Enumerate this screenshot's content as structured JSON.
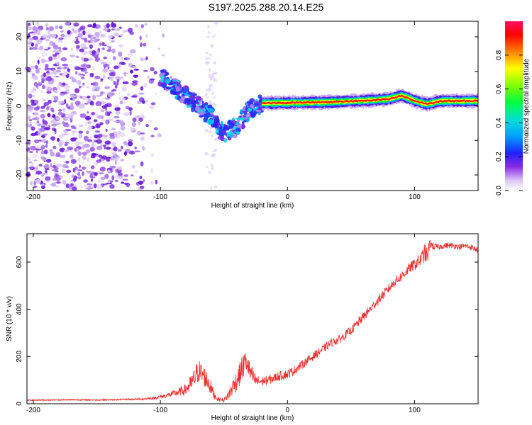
{
  "page": {
    "title": "S197.2025.288.20.14.E25"
  },
  "colors": {
    "snr_line": "#ee2c2c",
    "axis": "#000000",
    "background": "#ffffff"
  },
  "chart_data": [
    {
      "type": "heatmap",
      "title": "S197.2025.288.20.14.E25",
      "xlabel": "Height of straight line (km)",
      "ylabel": "Frequency (Hz)",
      "xlim": [
        -205,
        150
      ],
      "ylim": [
        -24.5,
        24.5
      ],
      "x_ticks": [
        -200,
        -100,
        0,
        100
      ],
      "y_ticks": [
        -20,
        -10,
        0,
        10,
        20
      ],
      "colorbar": {
        "label": "Normalized spectral amplitude",
        "range": [
          0.0,
          1.0
        ],
        "ticks": [
          0.0,
          0.2,
          0.4,
          0.6,
          0.8
        ],
        "colormap": [
          "#ffffff",
          "#c9a8f5",
          "#8020e8",
          "#1a1aff",
          "#00d8ff",
          "#00ff20",
          "#ffff00",
          "#ff2000",
          "#ff1060"
        ]
      },
      "features": [
        {
          "name": "scattered noise",
          "x_range": [
            -205,
            -95
          ],
          "y_range": [
            -24,
            24
          ],
          "amplitude": 0.1
        },
        {
          "name": "descending trace",
          "x": [
            -100,
            -90,
            -80,
            -70,
            -60,
            -50,
            -40,
            -30,
            -20
          ],
          "y": [
            8.5,
            6,
            3,
            0,
            -3,
            -8,
            -6,
            -1,
            0.5
          ],
          "amplitude": 0.35
        },
        {
          "name": "carrier line",
          "x": [
            -20,
            0,
            20,
            40,
            60,
            80,
            90,
            100,
            110,
            120,
            150
          ],
          "y": [
            0.8,
            0.9,
            1.0,
            1.2,
            1.5,
            2.0,
            3.0,
            1.5,
            0.5,
            1.4,
            1.5
          ],
          "amplitude": 0.9
        }
      ]
    },
    {
      "type": "line",
      "xlabel": "Height of straight line (km)",
      "ylabel": "SNR (10 * v/v)",
      "xlim": [
        -205,
        150
      ],
      "ylim": [
        0,
        720
      ],
      "x_ticks": [
        -200,
        -100,
        0,
        100
      ],
      "y_ticks": [
        0,
        200,
        400,
        600
      ],
      "series": [
        {
          "name": "SNR",
          "x": [
            -205,
            -190,
            -170,
            -150,
            -130,
            -115,
            -105,
            -95,
            -88,
            -80,
            -75,
            -72,
            -70,
            -66,
            -62,
            -58,
            -55,
            -50,
            -46,
            -42,
            -38,
            -35,
            -32,
            -30,
            -27,
            -24,
            -20,
            -15,
            -10,
            -5,
            0,
            5,
            10,
            15,
            20,
            25,
            30,
            35,
            40,
            45,
            50,
            55,
            60,
            65,
            70,
            75,
            80,
            85,
            90,
            95,
            100,
            105,
            108,
            110,
            112,
            115,
            120,
            125,
            130,
            135,
            140,
            145,
            150
          ],
          "y": [
            15,
            16,
            17,
            16,
            18,
            20,
            24,
            35,
            45,
            60,
            90,
            120,
            140,
            120,
            90,
            40,
            20,
            15,
            40,
            80,
            120,
            160,
            180,
            140,
            110,
            95,
            95,
            100,
            110,
            120,
            125,
            140,
            160,
            180,
            200,
            220,
            240,
            260,
            270,
            290,
            310,
            340,
            370,
            400,
            430,
            460,
            490,
            520,
            540,
            570,
            590,
            610,
            640,
            620,
            680,
            665,
            665,
            670,
            670,
            665,
            668,
            662,
            650
          ],
          "noise": [
            3,
            3,
            3,
            3,
            3,
            4,
            6,
            10,
            15,
            25,
            40,
            50,
            50,
            45,
            40,
            20,
            8,
            8,
            25,
            40,
            50,
            55,
            50,
            45,
            35,
            25,
            20,
            20,
            20,
            20,
            20,
            20,
            18,
            18,
            18,
            18,
            18,
            18,
            18,
            18,
            18,
            20,
            20,
            20,
            20,
            20,
            20,
            22,
            22,
            22,
            25,
            30,
            40,
            40,
            20,
            15,
            12,
            12,
            12,
            12,
            12,
            12,
            12
          ]
        }
      ]
    }
  ]
}
